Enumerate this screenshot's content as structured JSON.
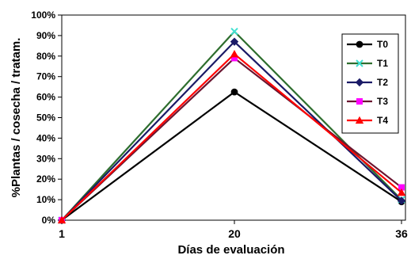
{
  "chart_data": {
    "type": "line",
    "xlabel": "Días de evaluación",
    "ylabel": "%Plantas / cosecha / tratam.",
    "x": [
      "1",
      "20",
      "36"
    ],
    "ylim": [
      0,
      100
    ],
    "yticks": [
      "0%",
      "10%",
      "20%",
      "30%",
      "40%",
      "50%",
      "60%",
      "70%",
      "80%",
      "90%",
      "100%"
    ],
    "grid": false,
    "legend": "right",
    "series": [
      {
        "name": "T0",
        "values": [
          0,
          62.5,
          9
        ],
        "color": "#000000",
        "marker": "circle"
      },
      {
        "name": "T1",
        "values": [
          0,
          92,
          10
        ],
        "color": "#2e6e2e",
        "marker": "x",
        "marker_color": "#40e0d0"
      },
      {
        "name": "T2",
        "values": [
          0,
          87,
          9.5
        ],
        "color": "#1a1a66",
        "marker": "diamond"
      },
      {
        "name": "T3",
        "values": [
          0,
          79,
          16
        ],
        "color": "#6b1530",
        "marker": "square",
        "marker_color": "#ff00ff"
      },
      {
        "name": "T4",
        "values": [
          0,
          81,
          13.5
        ],
        "color": "#ff0000",
        "marker": "triangle"
      }
    ]
  }
}
